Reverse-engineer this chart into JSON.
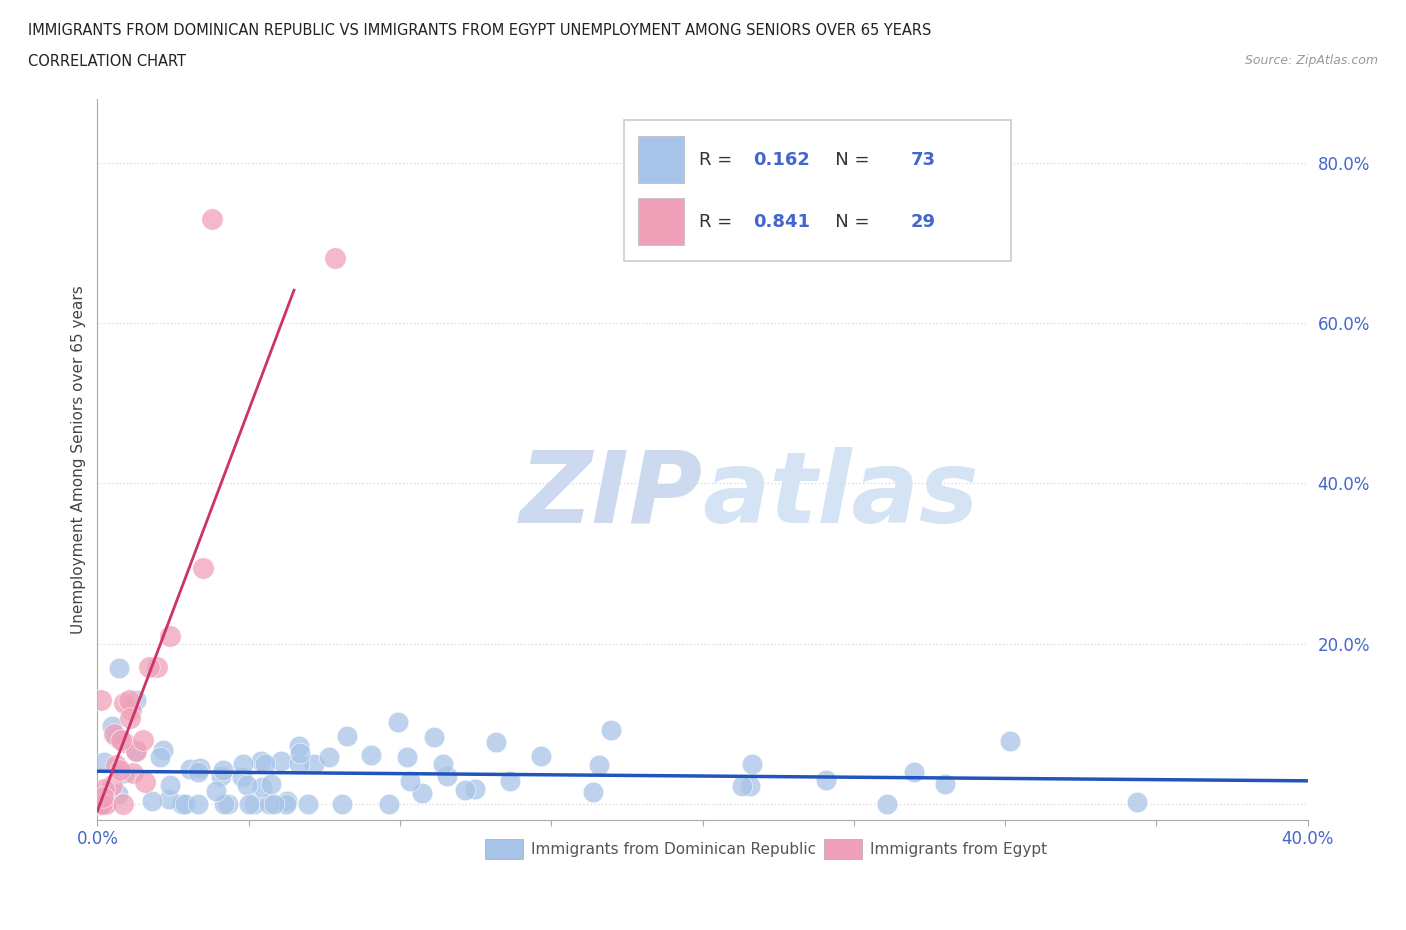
{
  "title_line1": "IMMIGRANTS FROM DOMINICAN REPUBLIC VS IMMIGRANTS FROM EGYPT UNEMPLOYMENT AMONG SENIORS OVER 65 YEARS",
  "title_line2": "CORRELATION CHART",
  "source": "Source: ZipAtlas.com",
  "ylabel": "Unemployment Among Seniors over 65 years",
  "xlim": [
    0.0,
    0.4
  ],
  "ylim": [
    -0.02,
    0.88
  ],
  "background_color": "#ffffff",
  "watermark_text": "ZIPatlas",
  "watermark_color": "#ccd9ee",
  "dr_color": "#a8c4e8",
  "egypt_color": "#f0a0b8",
  "dr_line_color": "#2255bb",
  "egypt_line_color": "#cc3366",
  "dr_R": 0.162,
  "dr_N": 73,
  "egypt_R": 0.841,
  "egypt_N": 29,
  "legend_label_dr": "Immigrants from Dominican Republic",
  "legend_label_egypt": "Immigrants from Egypt",
  "tick_color": "#4466cc",
  "grid_color": "#dddddd",
  "title_color": "#222222",
  "label_color": "#444444"
}
